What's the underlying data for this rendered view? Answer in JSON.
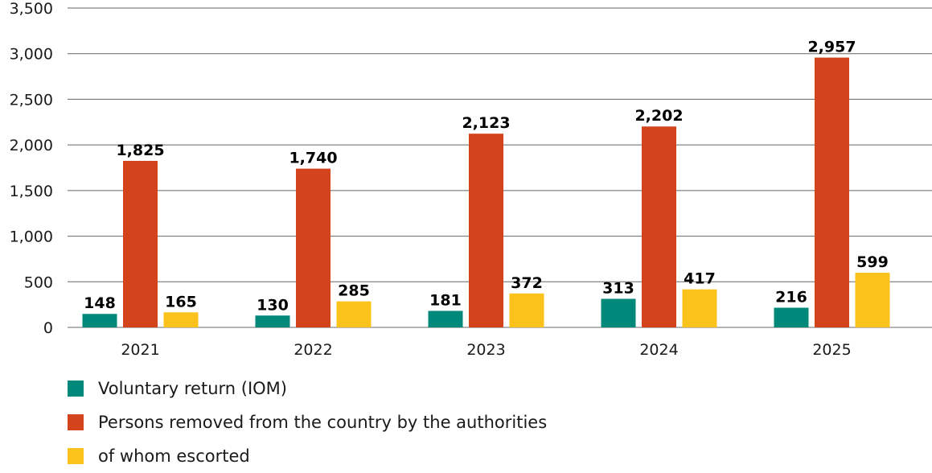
{
  "chart_data": {
    "type": "bar",
    "categories": [
      "2021",
      "2022",
      "2023",
      "2024",
      "2025"
    ],
    "series": [
      {
        "name": "Voluntary return (IOM)",
        "color": "#00897b",
        "values": [
          148,
          130,
          181,
          313,
          216
        ]
      },
      {
        "name": "Persons removed from the country by the authorities",
        "color": "#d3441c",
        "values": [
          1825,
          1740,
          2123,
          2202,
          2957
        ]
      },
      {
        "name": "of whom escorted",
        "color": "#fbc21b",
        "values": [
          165,
          285,
          372,
          417,
          599
        ]
      }
    ],
    "y_ticks": [
      "0",
      "500",
      "1,000",
      "1,500",
      "2,000",
      "2,500",
      "3,000",
      "3,500"
    ],
    "ylim": [
      0,
      3500
    ],
    "grid": true,
    "legend_position": "bottom-left",
    "title": "",
    "xlabel": "",
    "ylabel": ""
  }
}
